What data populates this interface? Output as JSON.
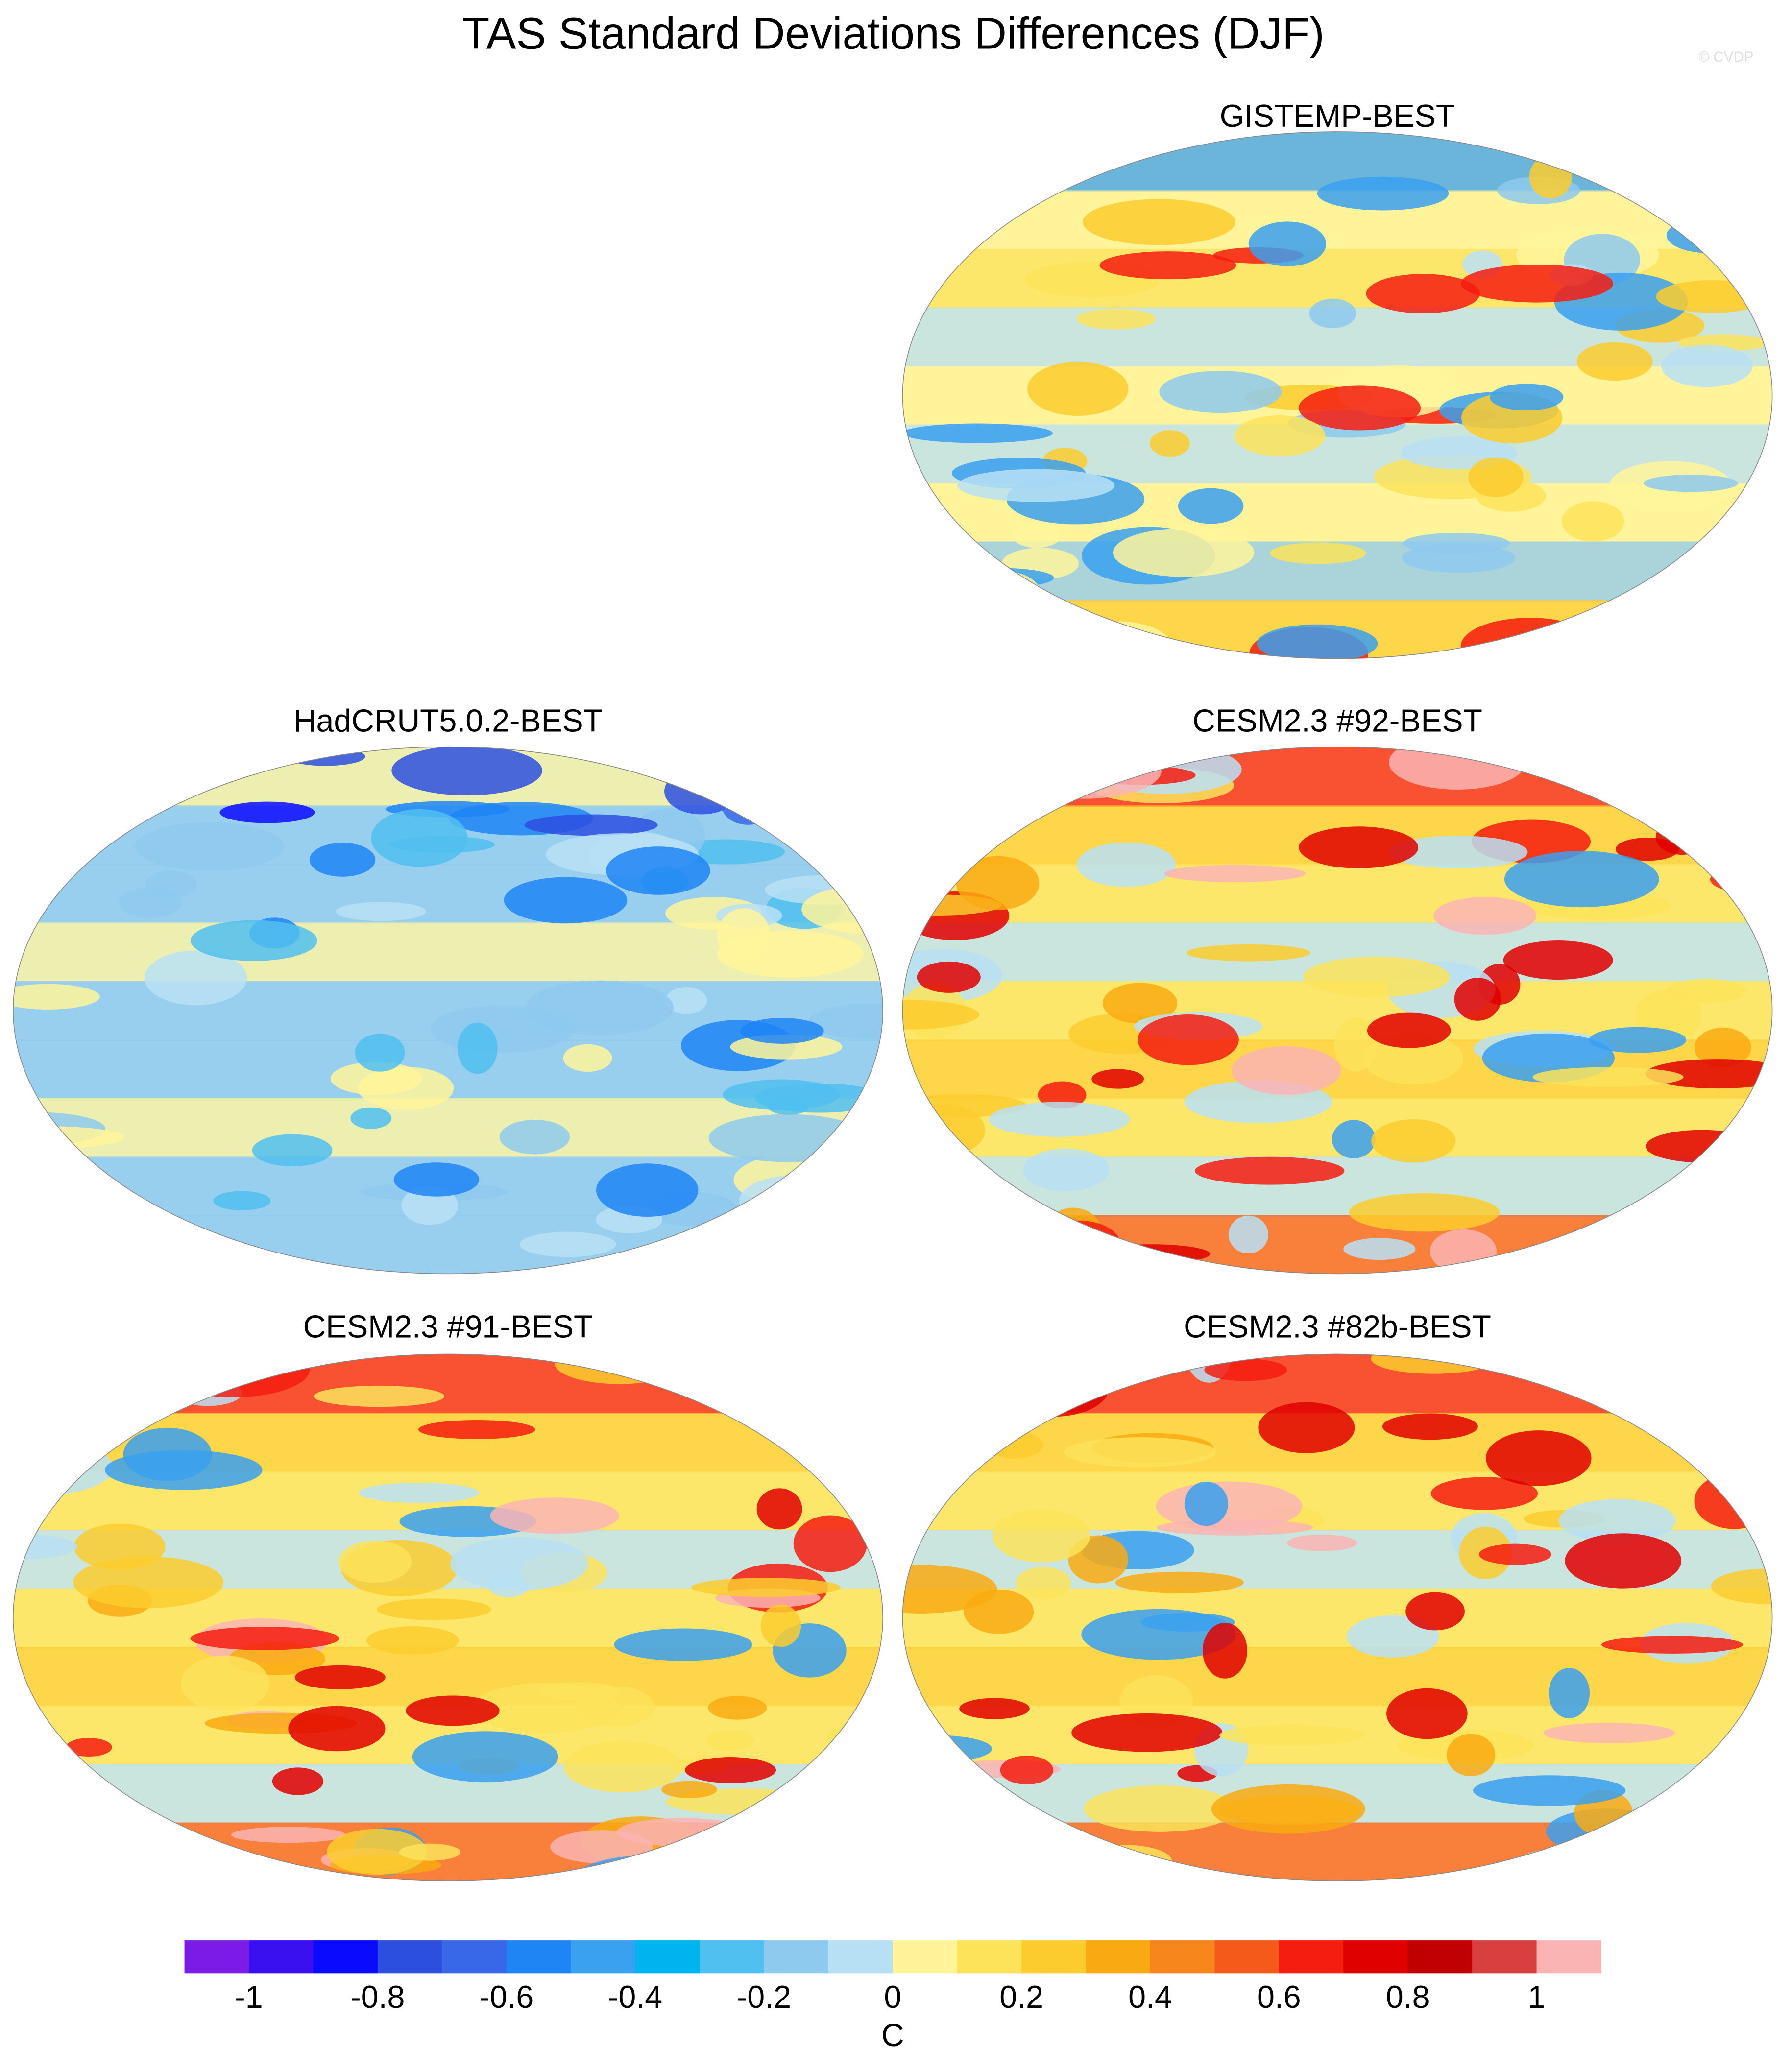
{
  "chart_data": {
    "type": "colorbar",
    "title": "TAS Standard Deviations Differences (DJF)",
    "watermark": "© CVDP",
    "panels": [
      {
        "title": "GISTEMP-BEST"
      },
      {
        "title": "HadCRUT5.0.2-BEST"
      },
      {
        "title": "CESM2.3 #92-BEST"
      },
      {
        "title": "CESM2.3 #91-BEST"
      },
      {
        "title": "CESM2.3 #82b-BEST"
      }
    ],
    "xlabel": "C",
    "xlim": [
      -1.1,
      1.1
    ],
    "xticks": [
      -1,
      -0.8,
      -0.6,
      -0.4,
      -0.2,
      0,
      0.2,
      0.4,
      0.6,
      0.8,
      1
    ],
    "colors": [
      "#7a1be6",
      "#3b10f0",
      "#0a0aff",
      "#2d4fe0",
      "#3868e8",
      "#1f85f5",
      "#3aa0f0",
      "#00b4f0",
      "#50c0f0",
      "#8ec9ee",
      "#b8e0f4",
      "#fff49a",
      "#fce35a",
      "#fccc2e",
      "#f9aa12",
      "#f7861c",
      "#f55a1a",
      "#f51c10",
      "#e00000",
      "#c00000",
      "#d84040",
      "#fab4b4"
    ]
  }
}
